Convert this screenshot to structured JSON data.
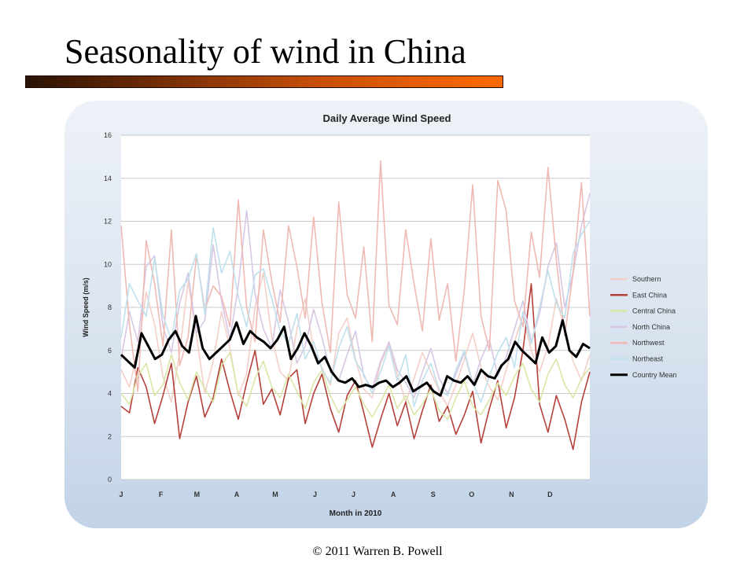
{
  "slide": {
    "title": "Seasonality of wind in China",
    "footer": "© 2011 Warren B. Powell"
  },
  "chart_data": {
    "type": "line",
    "title": "Daily Average Wind Speed",
    "xlabel": "Month in 2010",
    "ylabel": "Wind Speed (m/s)",
    "ylim": [
      0,
      16
    ],
    "yticks": [
      0,
      2,
      4,
      6,
      8,
      10,
      12,
      14,
      16
    ],
    "xticks": [
      "J",
      "F",
      "M",
      "A",
      "M",
      "J",
      "J",
      "A",
      "S",
      "O",
      "N",
      "D"
    ],
    "xlim_days": [
      0,
      365
    ],
    "grid": true,
    "legend_position": "right",
    "series": [
      {
        "name": "Southern",
        "color": "#f2d0c9",
        "y": [
          5.1,
          4.3,
          6.0,
          8.7,
          7.2,
          4.8,
          3.6,
          5.9,
          9.2,
          6.7,
          4.0,
          5.5,
          7.8,
          6.1,
          3.9,
          4.9,
          8.0,
          9.6,
          6.6,
          5.0,
          4.6,
          7.0,
          8.4,
          6.0,
          5.2,
          4.4,
          6.8,
          7.5,
          5.6,
          4.2,
          3.8,
          5.4,
          6.3,
          4.9,
          3.6,
          4.7,
          5.9,
          5.0,
          4.1,
          3.4,
          4.4,
          5.6,
          6.8,
          5.2,
          4.3,
          3.7,
          5.1,
          6.4,
          7.6,
          6.0,
          5.0,
          6.2,
          8.4,
          7.0,
          5.5,
          4.6,
          5.8
        ]
      },
      {
        "name": "East China",
        "color": "#b5403a",
        "y": [
          3.4,
          3.1,
          5.2,
          4.3,
          2.6,
          3.9,
          5.4,
          1.9,
          3.6,
          4.8,
          2.9,
          3.8,
          5.6,
          4.1,
          2.8,
          4.5,
          6.0,
          3.5,
          4.2,
          3.0,
          4.7,
          5.1,
          2.6,
          4.0,
          4.9,
          3.3,
          2.2,
          3.9,
          4.6,
          3.1,
          1.5,
          2.8,
          4.0,
          2.5,
          3.6,
          1.9,
          3.2,
          4.4,
          2.7,
          3.4,
          2.1,
          3.0,
          4.1,
          1.7,
          3.3,
          4.6,
          2.4,
          3.8,
          6.0,
          9.1,
          3.5,
          2.2,
          3.9,
          2.8,
          1.4,
          3.6,
          5.0
        ]
      },
      {
        "name": "Central China",
        "color": "#d9e6a6",
        "y": [
          4.0,
          3.5,
          4.8,
          5.4,
          3.9,
          4.4,
          5.8,
          4.5,
          3.7,
          5.0,
          4.2,
          3.6,
          5.3,
          5.9,
          4.0,
          3.4,
          4.7,
          5.5,
          4.3,
          3.8,
          4.9,
          4.1,
          3.3,
          4.5,
          5.1,
          3.9,
          3.1,
          3.7,
          4.3,
          3.5,
          2.9,
          3.6,
          4.4,
          3.3,
          3.9,
          3.0,
          3.5,
          4.2,
          3.2,
          2.8,
          3.8,
          4.6,
          3.4,
          3.0,
          3.7,
          4.5,
          3.9,
          4.8,
          5.4,
          4.2,
          3.6,
          4.9,
          5.6,
          4.4,
          3.8,
          4.7,
          5.2
        ]
      },
      {
        "name": "North China",
        "color": "#d7c7e4",
        "y": [
          5.6,
          7.8,
          6.4,
          9.9,
          10.4,
          7.1,
          5.9,
          8.2,
          9.6,
          6.8,
          7.4,
          10.9,
          8.3,
          6.5,
          9.0,
          12.5,
          8.6,
          7.0,
          6.1,
          8.8,
          7.3,
          5.4,
          6.2,
          7.9,
          6.6,
          5.0,
          4.6,
          5.8,
          6.9,
          4.8,
          4.2,
          5.5,
          6.4,
          5.1,
          4.5,
          3.8,
          5.0,
          6.1,
          4.7,
          4.0,
          4.9,
          5.9,
          4.4,
          5.6,
          6.5,
          4.8,
          5.7,
          7.0,
          8.3,
          6.4,
          7.7,
          9.9,
          11.0,
          8.0,
          9.6,
          11.8,
          13.3
        ]
      },
      {
        "name": "Northwest",
        "color": "#efb9b3",
        "y": [
          11.8,
          7.2,
          4.1,
          11.1,
          9.1,
          6.2,
          11.6,
          5.3,
          6.6,
          10.4,
          7.9,
          9.0,
          8.5,
          7.1,
          13.0,
          8.0,
          6.4,
          11.6,
          9.2,
          7.3,
          11.8,
          9.9,
          7.5,
          12.2,
          8.2,
          5.9,
          12.9,
          8.6,
          7.5,
          10.8,
          6.4,
          14.8,
          8.1,
          7.2,
          11.6,
          9.1,
          6.9,
          11.2,
          7.4,
          9.1,
          5.5,
          8.8,
          13.7,
          7.6,
          6.0,
          13.9,
          12.5,
          8.3,
          7.1,
          11.5,
          9.4,
          14.5,
          10.2,
          6.7,
          9.6,
          13.8,
          7.6
        ]
      },
      {
        "name": "Northeast",
        "color": "#bfe0ec",
        "y": [
          6.6,
          9.1,
          8.3,
          7.6,
          10.3,
          7.6,
          6.5,
          8.8,
          9.3,
          10.5,
          7.7,
          11.7,
          9.6,
          10.6,
          8.5,
          7.1,
          9.5,
          9.8,
          8.4,
          6.9,
          6.3,
          7.7,
          5.6,
          6.4,
          5.1,
          4.5,
          6.1,
          7.1,
          5.5,
          4.9,
          4.0,
          5.0,
          6.2,
          4.6,
          5.8,
          3.4,
          4.6,
          5.4,
          4.2,
          3.9,
          5.1,
          6.0,
          4.5,
          3.6,
          4.8,
          5.9,
          6.6,
          5.2,
          7.8,
          6.3,
          8.0,
          9.7,
          8.2,
          7.5,
          10.5,
          11.4,
          12.0
        ]
      },
      {
        "name": "Country Mean",
        "color": "#000000",
        "width": 3,
        "y": [
          5.8,
          5.5,
          5.2,
          6.8,
          6.2,
          5.6,
          5.8,
          6.5,
          6.9,
          6.2,
          5.9,
          7.6,
          6.1,
          5.6,
          5.9,
          6.2,
          6.5,
          7.3,
          6.3,
          6.9,
          6.6,
          6.4,
          6.1,
          6.5,
          7.1,
          5.6,
          6.1,
          6.8,
          6.2,
          5.4,
          5.7,
          5.0,
          4.6,
          4.5,
          4.7,
          4.3,
          4.4,
          4.3,
          4.5,
          4.6,
          4.3,
          4.5,
          4.8,
          4.1,
          4.3,
          4.5,
          4.1,
          3.9,
          4.8,
          4.6,
          4.5,
          4.8,
          4.4,
          5.1,
          4.8,
          4.7,
          5.3,
          5.6,
          6.4,
          6.0,
          5.7,
          5.4,
          6.6,
          5.9,
          6.2,
          7.4,
          6.0,
          5.7,
          6.3,
          6.1
        ]
      }
    ]
  }
}
